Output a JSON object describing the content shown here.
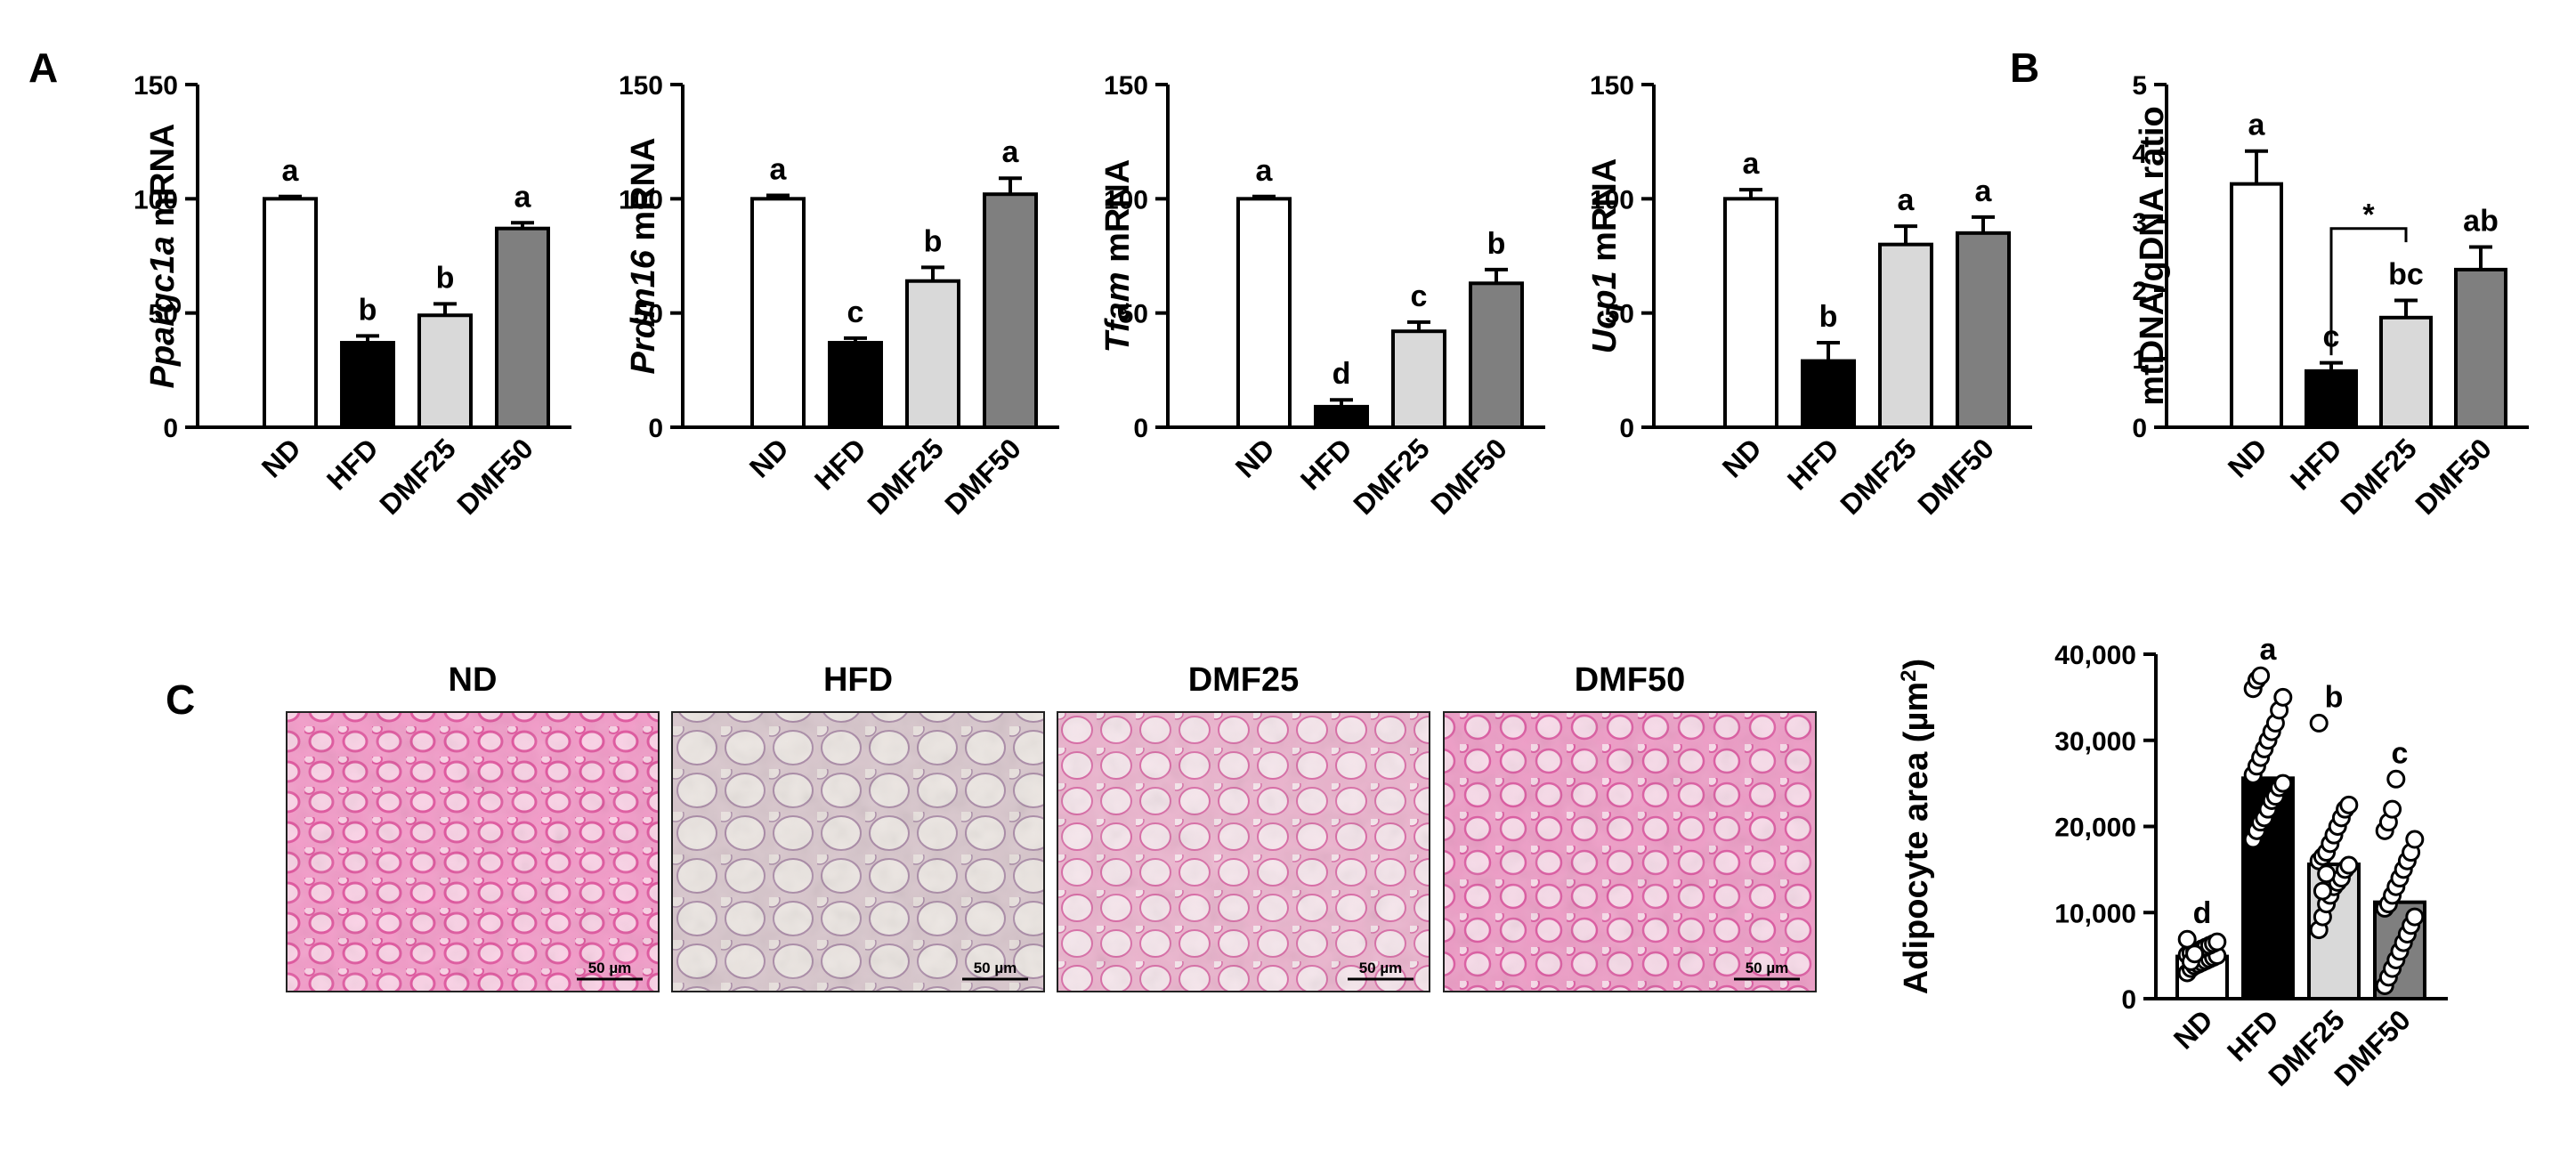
{
  "panel_letters": [
    "A",
    "B",
    "C"
  ],
  "colors": {
    "ND": "#ffffff",
    "HFD": "#000000",
    "DMF25": "#d9d9d9",
    "DMF50": "#7f7f7f",
    "tissue_pink": "#ec76b2",
    "tissue_light": "#e6d4dc"
  },
  "histology": {
    "titles": [
      "ND",
      "HFD",
      "DMF25",
      "DMF50"
    ],
    "scale_bar_label": "50 µm"
  },
  "chart_data": [
    {
      "id": "ppargc1a",
      "type": "bar",
      "ylabel_italic": "Ppargc1a",
      "ylabel_rest": " mRNA",
      "categories": [
        "ND",
        "HFD",
        "DMF25",
        "DMF50"
      ],
      "values": [
        100,
        37,
        49,
        87
      ],
      "errors": [
        1,
        3,
        5,
        2.5
      ],
      "significance": [
        "a",
        "b",
        "b",
        "a"
      ],
      "ylim": [
        0,
        150
      ],
      "yticks": [
        0,
        50,
        100,
        150
      ],
      "ytick_labels": [
        "0",
        "50",
        "100",
        "150"
      ]
    },
    {
      "id": "prdm16",
      "type": "bar",
      "ylabel_italic": "Prdm16",
      "ylabel_rest": " mRNA",
      "categories": [
        "ND",
        "HFD",
        "DMF25",
        "DMF50"
      ],
      "values": [
        100,
        37,
        64,
        102
      ],
      "errors": [
        1.5,
        2,
        6,
        7
      ],
      "significance": [
        "a",
        "c",
        "b",
        "a"
      ],
      "ylim": [
        0,
        150
      ],
      "yticks": [
        0,
        50,
        100,
        150
      ],
      "ytick_labels": [
        "0",
        "50",
        "100",
        "150"
      ]
    },
    {
      "id": "tfam",
      "type": "bar",
      "ylabel_italic": "Tfam",
      "ylabel_rest": " mRNA",
      "categories": [
        "ND",
        "HFD",
        "DMF25",
        "DMF50"
      ],
      "values": [
        100,
        9,
        42,
        63
      ],
      "errors": [
        1,
        3,
        4,
        6
      ],
      "significance": [
        "a",
        "d",
        "c",
        "b"
      ],
      "ylim": [
        0,
        150
      ],
      "yticks": [
        0,
        50,
        100,
        150
      ],
      "ytick_labels": [
        "0",
        "50",
        "100",
        "150"
      ]
    },
    {
      "id": "ucp1",
      "type": "bar",
      "ylabel_italic": "Ucp1",
      "ylabel_rest": " mRNA",
      "categories": [
        "ND",
        "HFD",
        "DMF25",
        "DMF50"
      ],
      "values": [
        100,
        29,
        80,
        85
      ],
      "errors": [
        4,
        8,
        8,
        7
      ],
      "significance": [
        "a",
        "b",
        "a",
        "a"
      ],
      "ylim": [
        0,
        150
      ],
      "yticks": [
        0,
        50,
        100,
        150
      ],
      "ytick_labels": [
        "0",
        "50",
        "100",
        "150"
      ]
    },
    {
      "id": "mtdna",
      "type": "bar",
      "ylabel_italic": "",
      "ylabel_rest": "mtDNA/gDNA ratio",
      "categories": [
        "ND",
        "HFD",
        "DMF25",
        "DMF50"
      ],
      "values": [
        3.55,
        0.82,
        1.6,
        2.3
      ],
      "errors": [
        0.48,
        0.12,
        0.25,
        0.33
      ],
      "significance": [
        "a",
        "c",
        "bc",
        "ab"
      ],
      "ylim": [
        0,
        5
      ],
      "yticks": [
        0,
        1,
        2,
        3,
        4,
        5
      ],
      "ytick_labels": [
        "0",
        "1",
        "2",
        "3",
        "4",
        "5"
      ],
      "bracket": {
        "from": "HFD",
        "to": "DMF25",
        "label": "*"
      }
    },
    {
      "id": "adipocyte",
      "type": "bar",
      "ylabel_italic": "",
      "ylabel_rest": "Adipocyte area (µm",
      "ylabel_sup": "2",
      "ylabel_close": ")",
      "categories": [
        "ND",
        "HFD",
        "DMF25",
        "DMF50"
      ],
      "values": [
        4900,
        25600,
        15600,
        11200
      ],
      "errors": [
        0,
        0,
        0,
        0
      ],
      "significance": [
        "d",
        "a",
        "b",
        "c"
      ],
      "ylim": [
        0,
        40000
      ],
      "yticks": [
        0,
        10000,
        20000,
        30000,
        40000
      ],
      "ytick_labels": [
        "0",
        "10,000",
        "20,000",
        "30,000",
        "40,000"
      ],
      "points": [
        [
          3000,
          3500,
          3800,
          4000,
          4200,
          4400,
          4600,
          4800,
          5000,
          5100,
          5300,
          5500,
          5600,
          5800,
          6000,
          6200,
          6400,
          6600,
          6900,
          4300,
          5200
        ],
        [
          18500,
          19500,
          20500,
          21000,
          22000,
          23000,
          23500,
          24500,
          25000,
          26000,
          27000,
          28000,
          29000,
          30000,
          31000,
          32000,
          33500,
          35000,
          36000,
          37000,
          37500
        ],
        [
          8000,
          9500,
          11000,
          12000,
          13000,
          13500,
          14000,
          15000,
          15500,
          16000,
          16500,
          17000,
          18000,
          19000,
          20000,
          21000,
          22000,
          22500,
          32000,
          12500,
          14500
        ],
        [
          1500,
          2500,
          3500,
          4500,
          5500,
          6500,
          7500,
          8500,
          9500,
          10500,
          11000,
          12000,
          13000,
          14000,
          15000,
          16000,
          17000,
          18500,
          19500,
          20500,
          22000,
          25500
        ]
      ]
    }
  ]
}
